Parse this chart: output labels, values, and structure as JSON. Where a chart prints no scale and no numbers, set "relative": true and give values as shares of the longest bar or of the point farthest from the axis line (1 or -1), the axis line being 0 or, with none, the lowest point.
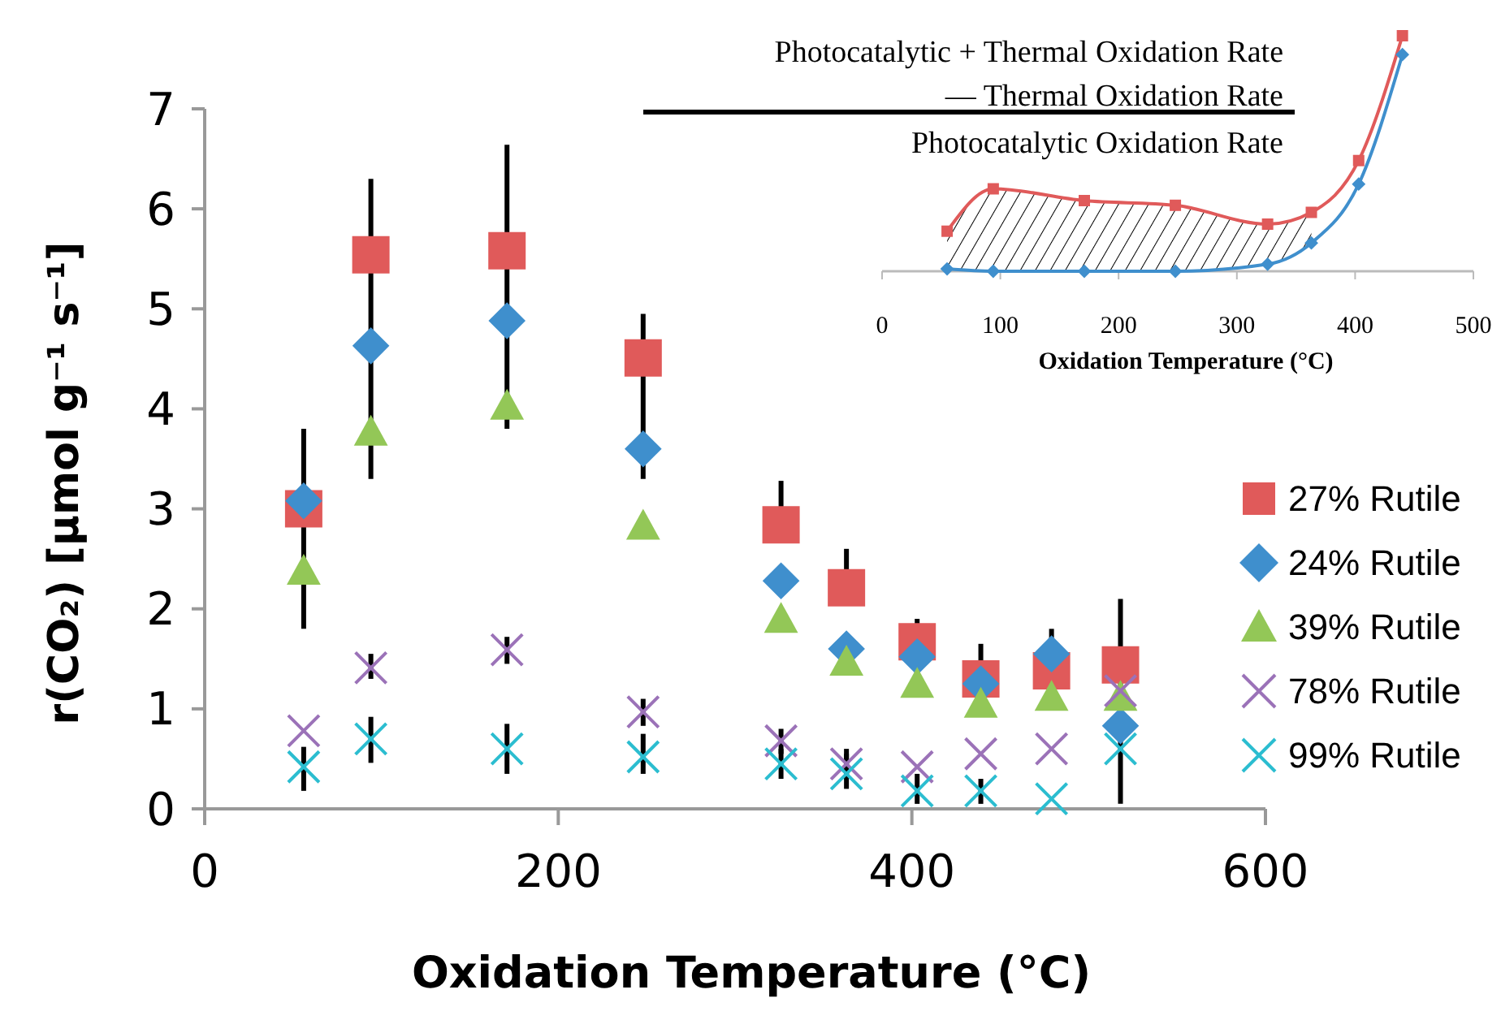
{
  "chart_data": [
    {
      "type": "scatter",
      "xlabel": "Oxidation Temperature (°C)",
      "ylabel": "r(CO₂) [µmol g⁻¹ s⁻¹]",
      "xlim": [
        0,
        600
      ],
      "ylim": [
        0,
        7
      ],
      "xticks": [
        0,
        200,
        400,
        600
      ],
      "yticks": [
        0,
        1,
        2,
        3,
        4,
        5,
        6,
        7
      ],
      "grid": false,
      "legend": "right",
      "x": [
        56,
        94,
        171,
        248,
        326,
        363,
        403,
        439,
        479,
        518
      ],
      "series": [
        {
          "name": "27% Rutile",
          "color": "#e05a5a",
          "marker": "square",
          "values": [
            3.0,
            5.54,
            5.58,
            4.51,
            2.84,
            2.21,
            1.67,
            1.3,
            1.38,
            1.44
          ],
          "errors": [
            [
              1.8,
              3.8
            ],
            [
              3.3,
              6.3
            ],
            [
              3.8,
              6.64
            ],
            [
              3.3,
              4.95
            ],
            [
              2.84,
              3.28
            ],
            [
              2.21,
              2.6
            ],
            [
              1.3,
              1.9
            ],
            [
              1.3,
              1.65
            ],
            [
              1.2,
              1.8
            ],
            [
              0.05,
              2.1
            ]
          ]
        },
        {
          "name": "24% Rutile",
          "color": "#3f8fcd",
          "marker": "diamond",
          "values": [
            3.08,
            4.63,
            4.88,
            3.6,
            2.28,
            1.6,
            1.52,
            1.25,
            1.55,
            0.83
          ]
        },
        {
          "name": "39% Rutile",
          "color": "#93c757",
          "marker": "triangle",
          "values": [
            2.38,
            3.77,
            4.03,
            2.83,
            1.9,
            1.47,
            1.25,
            1.05,
            1.12,
            1.12
          ]
        },
        {
          "name": "78% Rutile",
          "color": "#9b72b8",
          "marker": "cross",
          "values": [
            0.78,
            1.41,
            1.59,
            0.97,
            0.68,
            0.45,
            0.42,
            0.55,
            0.6,
            1.18
          ],
          "errors": [
            null,
            [
              1.3,
              1.55
            ],
            [
              1.45,
              1.72
            ],
            [
              0.83,
              1.1
            ],
            [
              0.55,
              0.8
            ],
            [
              0.3,
              0.6
            ],
            null,
            null,
            null,
            null
          ]
        },
        {
          "name": "99% Rutile",
          "color": "#2bbdd0",
          "marker": "cross",
          "values": [
            0.42,
            0.7,
            0.6,
            0.52,
            0.45,
            0.35,
            0.18,
            0.18,
            0.1,
            0.6
          ],
          "errors": [
            [
              0.18,
              0.62
            ],
            [
              0.46,
              0.92
            ],
            [
              0.35,
              0.85
            ],
            [
              0.35,
              0.75
            ],
            [
              0.3,
              0.6
            ],
            [
              0.2,
              0.55
            ],
            [
              0.05,
              0.35
            ],
            [
              0.05,
              0.3
            ],
            null,
            null
          ]
        }
      ]
    },
    {
      "type": "line",
      "relative": true,
      "xlabel": "Oxidation Temperature (°C)",
      "xlim": [
        0,
        500
      ],
      "xticks": [
        0,
        100,
        200,
        300,
        400,
        500
      ],
      "legend": false,
      "grid": false,
      "annotations": [
        "Photocatalytic + Thermal Oxidation Rate",
        "— Thermal Oxidation Rate",
        "Photocatalytic Oxidation Rate"
      ],
      "x": [
        55,
        94,
        171,
        248,
        326,
        363,
        403,
        440
      ],
      "series": [
        {
          "color": "#e05a5a",
          "marker": "square",
          "values": [
            0.17,
            0.35,
            0.3,
            0.28,
            0.2,
            0.25,
            0.47,
            1
          ],
          "upper": [
            0.17,
            0.35,
            0.3,
            0.28,
            0.2,
            0.25,
            null,
            null
          ],
          "lower": [
            0.01,
            0,
            0,
            0,
            0.03,
            0.12,
            null,
            null
          ]
        },
        {
          "color": "#3f8fcd",
          "marker": "diamond",
          "values": [
            0.01,
            0,
            0,
            0,
            0.03,
            0.12,
            0.37,
            0.92
          ]
        }
      ]
    }
  ]
}
